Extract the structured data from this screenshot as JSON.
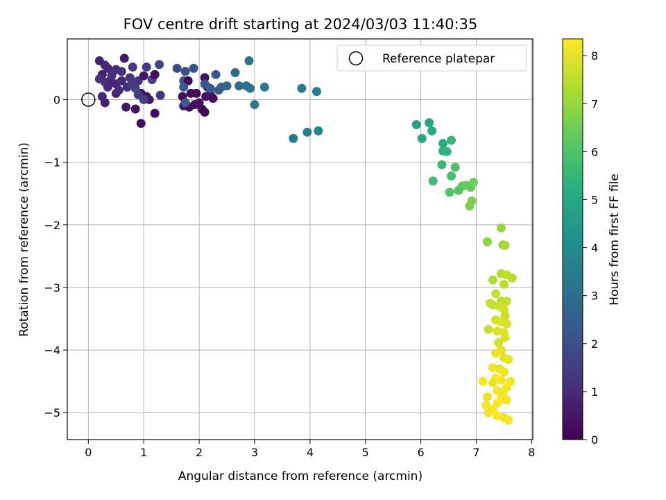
{
  "chart_data": {
    "type": "scatter",
    "title": "FOV centre drift starting at 2024/03/03 11:40:35",
    "xlabel": "Angular distance from reference (arcmin)",
    "ylabel": "Rotation from reference (arcmin)",
    "xlim": [
      -0.38,
      8.02
    ],
    "ylim": [
      -5.43,
      0.97
    ],
    "xticks": [
      "0",
      "1",
      "2",
      "3",
      "4",
      "5",
      "6",
      "7",
      "8"
    ],
    "yticks": [
      "0",
      "−1",
      "−2",
      "−3",
      "−4",
      "−5"
    ],
    "grid": true,
    "colormap": "viridis",
    "colorbar": {
      "label": "Hours from first FF file",
      "range": [
        0,
        8.35
      ],
      "ticks": [
        "0",
        "1",
        "2",
        "3",
        "4",
        "5",
        "6",
        "7",
        "8"
      ]
    },
    "legend": {
      "placement": "top-right",
      "entries": [
        {
          "label": "Reference platepar",
          "marker": "open-circle"
        }
      ]
    },
    "reference_point": {
      "x": 0,
      "y": 0
    },
    "series": [
      {
        "points": [
          [
            0.2,
            0.62,
            0.8
          ],
          [
            0.35,
            0.5,
            0.9
          ],
          [
            0.45,
            0.45,
            1.0
          ],
          [
            0.25,
            0.4,
            0.7
          ],
          [
            0.4,
            0.3,
            0.8
          ],
          [
            0.3,
            0.28,
            1.1
          ],
          [
            0.2,
            0.33,
            1.2
          ],
          [
            0.5,
            0.25,
            0.9
          ],
          [
            0.35,
            0.2,
            1.0
          ],
          [
            0.6,
            0.45,
            1.2
          ],
          [
            0.65,
            0.66,
            0.5
          ],
          [
            0.75,
            0.35,
            1.3
          ],
          [
            0.8,
            0.52,
            1.4
          ],
          [
            0.7,
            0.2,
            1.1
          ],
          [
            0.9,
            0.3,
            1.2
          ],
          [
            0.95,
            0.1,
            0.4
          ],
          [
            1.0,
            0.38,
            0.5
          ],
          [
            1.05,
            0.52,
            1.5
          ],
          [
            1.1,
            0.0,
            0.6
          ],
          [
            1.15,
            0.32,
            1.6
          ],
          [
            1.2,
            0.4,
            0.3
          ],
          [
            1.28,
            0.56,
            1.7
          ],
          [
            1.3,
            0.07,
            1.3
          ],
          [
            0.25,
            0.05,
            0.9
          ],
          [
            0.3,
            -0.05,
            0.7
          ],
          [
            0.5,
            0.1,
            0.8
          ],
          [
            0.68,
            -0.12,
            0.6
          ],
          [
            0.85,
            -0.15,
            0.4
          ],
          [
            0.95,
            -0.38,
            0.3
          ],
          [
            1.05,
            0.05,
            0.5
          ],
          [
            1.2,
            -0.22,
            0.2
          ],
          [
            0.9,
            0.08,
            1.5
          ],
          [
            1.0,
            0.0,
            1.6
          ],
          [
            0.85,
            0.18,
            1.7
          ],
          [
            0.6,
            0.3,
            0.9
          ],
          [
            0.55,
            0.15,
            1.0
          ],
          [
            0.42,
            0.38,
            1.1
          ],
          [
            0.78,
            0.25,
            1.4
          ],
          [
            0.3,
            0.55,
            0.9
          ],
          [
            0.5,
            0.48,
            1.1
          ],
          [
            1.6,
            0.5,
            1.9
          ],
          [
            1.75,
            0.45,
            2.0
          ],
          [
            1.9,
            0.5,
            2.1
          ],
          [
            1.72,
            0.3,
            2.2
          ],
          [
            1.8,
            0.3,
            0.1
          ],
          [
            1.85,
            0.1,
            0.2
          ],
          [
            1.7,
            0.05,
            0.3
          ],
          [
            1.75,
            -0.05,
            0.4
          ],
          [
            1.72,
            -0.1,
            0.5
          ],
          [
            1.82,
            -0.12,
            0.2
          ],
          [
            1.95,
            0.1,
            0.1
          ],
          [
            1.92,
            -0.08,
            0.3
          ],
          [
            2.0,
            -0.05,
            0.4
          ],
          [
            2.05,
            -0.15,
            0.2
          ],
          [
            2.1,
            -0.2,
            0.1
          ],
          [
            2.1,
            0.35,
            0.3
          ],
          [
            2.12,
            0.05,
            0.4
          ],
          [
            2.15,
            0.2,
            0.5
          ],
          [
            2.2,
            0.08,
            0.6
          ],
          [
            2.25,
            0.02,
            0.3
          ],
          [
            1.75,
            -0.05,
            2.4
          ],
          [
            1.72,
            0.2,
            2.3
          ],
          [
            2.1,
            0.25,
            2.2
          ],
          [
            2.2,
            0.18,
            2.3
          ],
          [
            2.3,
            0.4,
            2.4
          ],
          [
            2.35,
            0.15,
            2.5
          ],
          [
            2.4,
            0.2,
            2.6
          ],
          [
            2.5,
            0.22,
            2.7
          ],
          [
            2.65,
            0.43,
            2.8
          ],
          [
            2.72,
            0.22,
            2.9
          ],
          [
            2.85,
            0.22,
            3.0
          ],
          [
            2.9,
            0.62,
            3.1
          ],
          [
            2.92,
            0.18,
            3.2
          ],
          [
            3.0,
            -0.08,
            3.3
          ],
          [
            3.18,
            0.2,
            3.4
          ],
          [
            3.7,
            -0.62,
            3.4
          ],
          [
            3.85,
            0.18,
            3.5
          ],
          [
            3.95,
            -0.52,
            3.6
          ],
          [
            4.12,
            0.13,
            3.7
          ],
          [
            4.15,
            -0.5,
            3.8
          ],
          [
            5.92,
            -0.4,
            4.8
          ],
          [
            6.15,
            -0.37,
            4.9
          ],
          [
            6.02,
            -0.62,
            5.0
          ],
          [
            6.2,
            -0.5,
            5.1
          ],
          [
            6.4,
            -0.7,
            5.2
          ],
          [
            6.4,
            -0.82,
            5.3
          ],
          [
            6.47,
            -0.83,
            5.4
          ],
          [
            6.55,
            -0.65,
            5.5
          ],
          [
            6.38,
            -1.04,
            5.6
          ],
          [
            6.22,
            -1.3,
            5.7
          ],
          [
            6.55,
            -1.22,
            5.8
          ],
          [
            6.62,
            -1.08,
            5.9
          ],
          [
            6.52,
            -1.48,
            6.0
          ],
          [
            6.68,
            -1.45,
            6.1
          ],
          [
            6.75,
            -1.38,
            6.2
          ],
          [
            6.82,
            -1.37,
            6.3
          ],
          [
            6.9,
            -1.4,
            6.4
          ],
          [
            6.95,
            -1.32,
            6.5
          ],
          [
            6.92,
            -1.62,
            6.6
          ],
          [
            6.88,
            -1.7,
            6.7
          ],
          [
            7.2,
            -2.27,
            6.9
          ],
          [
            7.45,
            -2.05,
            7.0
          ],
          [
            7.48,
            -2.32,
            7.1
          ],
          [
            7.52,
            -2.33,
            7.2
          ],
          [
            7.3,
            -2.88,
            7.3
          ],
          [
            7.45,
            -2.78,
            7.4
          ],
          [
            7.55,
            -2.8,
            7.5
          ],
          [
            7.65,
            -2.85,
            7.4
          ],
          [
            7.5,
            -2.95,
            7.5
          ],
          [
            7.35,
            -3.1,
            7.6
          ],
          [
            7.45,
            -3.22,
            7.5
          ],
          [
            7.55,
            -3.22,
            7.6
          ],
          [
            7.25,
            -3.25,
            7.7
          ],
          [
            7.3,
            -3.28,
            7.6
          ],
          [
            7.42,
            -3.3,
            7.7
          ],
          [
            7.5,
            -3.35,
            7.8
          ],
          [
            7.52,
            -3.45,
            7.7
          ],
          [
            7.35,
            -3.52,
            7.8
          ],
          [
            7.45,
            -3.55,
            7.9
          ],
          [
            7.55,
            -3.58,
            7.8
          ],
          [
            7.22,
            -3.67,
            7.6
          ],
          [
            7.38,
            -3.7,
            7.9
          ],
          [
            7.5,
            -3.72,
            8.0
          ],
          [
            7.4,
            -3.88,
            7.8
          ],
          [
            7.52,
            -3.8,
            7.9
          ],
          [
            7.45,
            -4.0,
            8.0
          ],
          [
            7.35,
            -4.05,
            8.1
          ],
          [
            7.5,
            -4.12,
            8.0
          ],
          [
            7.58,
            -4.15,
            8.1
          ],
          [
            7.3,
            -4.28,
            8.2
          ],
          [
            7.42,
            -4.3,
            8.1
          ],
          [
            7.5,
            -4.35,
            8.2
          ],
          [
            7.35,
            -4.45,
            8.3
          ],
          [
            7.45,
            -4.48,
            8.2
          ],
          [
            7.12,
            -4.5,
            8.3
          ],
          [
            7.3,
            -4.52,
            8.1
          ],
          [
            7.62,
            -4.5,
            8.2
          ],
          [
            7.55,
            -4.6,
            8.3
          ],
          [
            7.38,
            -4.65,
            8.3
          ],
          [
            7.48,
            -4.68,
            8.2
          ],
          [
            7.2,
            -4.75,
            8.1
          ],
          [
            7.45,
            -4.78,
            8.3
          ],
          [
            7.55,
            -4.8,
            8.2
          ],
          [
            7.38,
            -4.85,
            8.3
          ],
          [
            7.18,
            -4.88,
            8.2
          ],
          [
            7.3,
            -4.95,
            8.3
          ],
          [
            7.22,
            -5.0,
            8.2
          ],
          [
            7.38,
            -5.05,
            8.3
          ],
          [
            7.5,
            -5.08,
            8.2
          ],
          [
            7.58,
            -5.12,
            8.3
          ]
        ]
      }
    ]
  }
}
